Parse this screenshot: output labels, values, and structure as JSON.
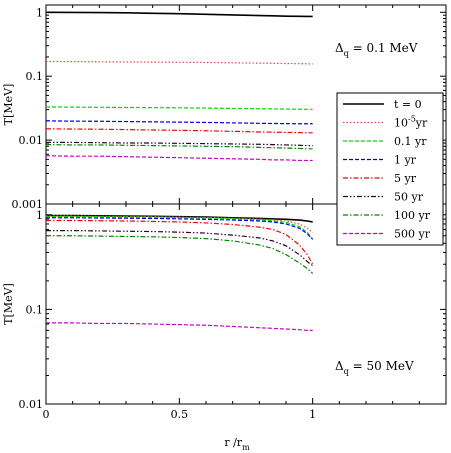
{
  "chart_data": {
    "type": "line",
    "x": [
      0,
      0.1,
      0.2,
      0.3,
      0.4,
      0.5,
      0.6,
      0.7,
      0.8,
      0.85,
      0.9,
      0.95,
      0.98,
      1.0
    ],
    "xlim": [
      0,
      1.5
    ],
    "x_tick_labels": [
      "0",
      "0.5",
      "1"
    ],
    "x_ticks": [
      0,
      0.5,
      1
    ],
    "xlabel": {
      "main": "r /r",
      "sub": "m"
    },
    "ylabel": "T[MeV]",
    "grid": false,
    "y_scale": "log",
    "legend": {
      "placement": "right, spanning both panels",
      "entries": [
        {
          "label": "t = 0",
          "color": "#000000",
          "dash": "solid",
          "sup": ""
        },
        {
          "label": "10",
          "sup": "-5",
          "suffix": "yr",
          "color": "#ff4040",
          "dash": "dotted"
        },
        {
          "label": "0.1 yr",
          "color": "#00dd00",
          "dash": "dashed",
          "sup": ""
        },
        {
          "label": "1 yr",
          "color": "#0000ff",
          "dash": "dashed",
          "sup": ""
        },
        {
          "label": "5 yr",
          "color": "#ff0000",
          "dash": "dashdot",
          "sup": ""
        },
        {
          "label": "50 yr",
          "color": "#330033",
          "dash": "dashdotdot",
          "sup": ""
        },
        {
          "label": "100 yr",
          "color": "#008800",
          "dash": "dashdot",
          "sup": ""
        },
        {
          "label": "500 yr",
          "color": "#cc00cc",
          "dash": "dashed",
          "sup": ""
        }
      ]
    },
    "panels": [
      {
        "annotation": {
          "prefix": "Δ",
          "sub": "q",
          "suffix": " = 0.1 MeV"
        },
        "ylim": [
          0.001,
          1.3
        ],
        "y_ticks": [
          0.001,
          0.01,
          0.1,
          1
        ],
        "y_tick_labels": [
          "0.001",
          "0.01",
          "0.1",
          "1"
        ],
        "series": [
          {
            "values": [
              1.0,
              0.995,
              0.99,
              0.98,
              0.965,
              0.95,
              0.93,
              0.91,
              0.89,
              0.88,
              0.87,
              0.865,
              0.86,
              0.86
            ]
          },
          {
            "values": [
              0.17,
              0.169,
              0.168,
              0.167,
              0.166,
              0.165,
              0.164,
              0.162,
              0.16,
              0.159,
              0.158,
              0.157,
              0.156,
              0.156
            ]
          },
          {
            "values": [
              0.033,
              0.0328,
              0.0326,
              0.0324,
              0.0322,
              0.032,
              0.0317,
              0.0313,
              0.031,
              0.0308,
              0.0306,
              0.0304,
              0.0303,
              0.0303
            ]
          },
          {
            "values": [
              0.02,
              0.0198,
              0.0197,
              0.0195,
              0.0193,
              0.0191,
              0.0189,
              0.0186,
              0.0183,
              0.0182,
              0.0181,
              0.018,
              0.018,
              0.018
            ]
          },
          {
            "values": [
              0.015,
              0.0149,
              0.0148,
              0.0146,
              0.0144,
              0.0142,
              0.014,
              0.0137,
              0.0134,
              0.0133,
              0.0132,
              0.0131,
              0.013,
              0.013
            ]
          },
          {
            "values": [
              0.0092,
              0.0092,
              0.0091,
              0.009,
              0.009,
              0.0089,
              0.0088,
              0.0087,
              0.0086,
              0.0085,
              0.0084,
              0.0083,
              0.0082,
              0.0082
            ]
          },
          {
            "values": [
              0.0085,
              0.0084,
              0.0084,
              0.0083,
              0.0082,
              0.0081,
              0.008,
              0.0079,
              0.0077,
              0.0076,
              0.0075,
              0.0074,
              0.0073,
              0.0073
            ]
          },
          {
            "values": [
              0.0057,
              0.0056,
              0.0056,
              0.0055,
              0.0054,
              0.0053,
              0.0052,
              0.0051,
              0.005,
              0.0049,
              0.0049,
              0.0048,
              0.0048,
              0.0048
            ]
          }
        ]
      },
      {
        "annotation": {
          "prefix": "Δ",
          "sub": "q",
          "suffix": " = 50 MeV"
        },
        "ylim": [
          0.01,
          1.3
        ],
        "y_ticks": [
          0.01,
          0.1,
          1
        ],
        "y_tick_labels": [
          "0.01",
          "0.1",
          "1"
        ],
        "series": [
          {
            "values": [
              0.98,
              0.98,
              0.975,
              0.97,
              0.965,
              0.955,
              0.945,
              0.93,
              0.915,
              0.905,
              0.895,
              0.88,
              0.86,
              0.84
            ]
          },
          {
            "values": [
              0.97,
              0.97,
              0.965,
              0.96,
              0.955,
              0.945,
              0.935,
              0.92,
              0.9,
              0.885,
              0.86,
              0.8,
              0.72,
              0.65
            ]
          },
          {
            "values": [
              0.96,
              0.96,
              0.955,
              0.95,
              0.945,
              0.935,
              0.925,
              0.91,
              0.885,
              0.865,
              0.83,
              0.75,
              0.65,
              0.55
            ]
          },
          {
            "values": [
              0.93,
              0.93,
              0.925,
              0.92,
              0.915,
              0.905,
              0.895,
              0.88,
              0.86,
              0.84,
              0.8,
              0.72,
              0.63,
              0.55
            ]
          },
          {
            "values": [
              0.87,
              0.87,
              0.865,
              0.86,
              0.85,
              0.84,
              0.82,
              0.79,
              0.74,
              0.7,
              0.62,
              0.48,
              0.38,
              0.3
            ]
          },
          {
            "values": [
              0.68,
              0.68,
              0.675,
              0.67,
              0.665,
              0.655,
              0.64,
              0.61,
              0.57,
              0.53,
              0.47,
              0.38,
              0.32,
              0.29
            ]
          },
          {
            "values": [
              0.6,
              0.6,
              0.595,
              0.59,
              0.585,
              0.575,
              0.56,
              0.53,
              0.48,
              0.44,
              0.38,
              0.31,
              0.27,
              0.24
            ]
          },
          {
            "values": [
              0.072,
              0.072,
              0.071,
              0.071,
              0.07,
              0.069,
              0.068,
              0.066,
              0.064,
              0.063,
              0.062,
              0.061,
              0.06,
              0.06
            ]
          }
        ]
      }
    ]
  }
}
